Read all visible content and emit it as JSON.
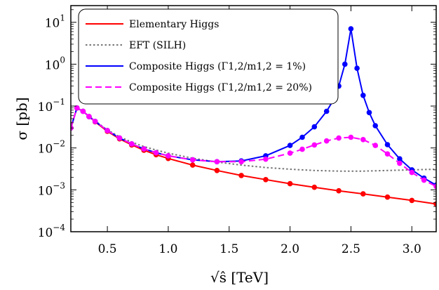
{
  "chart_data": {
    "type": "line",
    "title": "",
    "xlabel": "√ŝ  [TeV]",
    "ylabel": "σ  [pb]",
    "xlim": [
      0.2,
      3.2
    ],
    "ylim": [
      0.0001,
      25
    ],
    "yscale": "log",
    "grid": false,
    "legend_position": "top-left",
    "x_ticks": [
      {
        "value": 0.5,
        "label": "0.5"
      },
      {
        "value": 1.0,
        "label": "1.0"
      },
      {
        "value": 1.5,
        "label": "1.5"
      },
      {
        "value": 2.0,
        "label": "2.0"
      },
      {
        "value": 2.5,
        "label": "2.5"
      },
      {
        "value": 3.0,
        "label": "3.0"
      }
    ],
    "y_ticks": [
      {
        "value": 0.0001,
        "base": "10",
        "exp": "−4"
      },
      {
        "value": 0.001,
        "base": "10",
        "exp": "−3"
      },
      {
        "value": 0.01,
        "base": "10",
        "exp": "−2"
      },
      {
        "value": 0.1,
        "base": "10",
        "exp": "−1"
      },
      {
        "value": 1,
        "base": "10",
        "exp": "0"
      },
      {
        "value": 10,
        "base": "10",
        "exp": "1"
      }
    ],
    "series": [
      {
        "name": "Elementary Higgs",
        "color": "#ff0000",
        "style": "solid",
        "markers": true,
        "x": [
          0.2,
          0.25,
          0.3,
          0.35,
          0.4,
          0.5,
          0.6,
          0.7,
          0.8,
          0.9,
          1.0,
          1.2,
          1.4,
          1.6,
          1.8,
          2.0,
          2.2,
          2.4,
          2.6,
          2.8,
          3.0,
          3.2
        ],
        "y": [
          0.03,
          0.09,
          0.075,
          0.056,
          0.042,
          0.025,
          0.0165,
          0.0118,
          0.0088,
          0.0069,
          0.0056,
          0.0039,
          0.0029,
          0.0022,
          0.00175,
          0.0014,
          0.00115,
          0.00095,
          0.0008,
          0.00067,
          0.00056,
          0.00046
        ]
      },
      {
        "name": "EFT (SILH)",
        "color": "#777777",
        "style": "dotted",
        "markers": false,
        "x": [
          0.2,
          0.25,
          0.3,
          0.35,
          0.4,
          0.5,
          0.6,
          0.7,
          0.8,
          0.9,
          1.0,
          1.2,
          1.4,
          1.6,
          1.8,
          2.0,
          2.2,
          2.4,
          2.6,
          2.8,
          3.0,
          3.2
        ],
        "y": [
          0.03,
          0.09,
          0.075,
          0.057,
          0.044,
          0.027,
          0.0185,
          0.0138,
          0.0108,
          0.0089,
          0.0075,
          0.0057,
          0.0046,
          0.0039,
          0.0034,
          0.0031,
          0.0029,
          0.0028,
          0.0028,
          0.0029,
          0.003,
          0.0031
        ]
      },
      {
        "name": "Composite Higgs (Γ1,2/m1,2 = 1%)",
        "color": "#0000ff",
        "style": "solid",
        "markers": true,
        "x": [
          0.2,
          0.25,
          0.3,
          0.35,
          0.4,
          0.5,
          0.6,
          0.7,
          0.8,
          0.9,
          1.0,
          1.2,
          1.4,
          1.6,
          1.8,
          2.0,
          2.1,
          2.2,
          2.3,
          2.35,
          2.4,
          2.45,
          2.5,
          2.55,
          2.6,
          2.65,
          2.7,
          2.8,
          2.9,
          3.0,
          3.1,
          3.2
        ],
        "y": [
          0.03,
          0.09,
          0.075,
          0.056,
          0.043,
          0.026,
          0.0172,
          0.0125,
          0.0095,
          0.0077,
          0.0065,
          0.0052,
          0.0047,
          0.0049,
          0.0065,
          0.0115,
          0.018,
          0.032,
          0.075,
          0.13,
          0.3,
          1.0,
          7.0,
          0.8,
          0.18,
          0.07,
          0.034,
          0.012,
          0.0055,
          0.003,
          0.0019,
          0.0013
        ]
      },
      {
        "name": "Composite Higgs (Γ1,2/m1,2 = 20%)",
        "color": "#ff00ff",
        "style": "dashed",
        "markers": true,
        "x": [
          0.2,
          0.25,
          0.3,
          0.35,
          0.4,
          0.5,
          0.6,
          0.7,
          0.8,
          0.9,
          1.0,
          1.2,
          1.4,
          1.6,
          1.8,
          2.0,
          2.1,
          2.2,
          2.3,
          2.4,
          2.5,
          2.6,
          2.7,
          2.8,
          2.9,
          3.0,
          3.1,
          3.2
        ],
        "y": [
          0.03,
          0.09,
          0.075,
          0.056,
          0.043,
          0.026,
          0.0172,
          0.0125,
          0.0095,
          0.0077,
          0.0065,
          0.0052,
          0.0047,
          0.0047,
          0.0054,
          0.0075,
          0.0093,
          0.0118,
          0.0147,
          0.0172,
          0.018,
          0.0158,
          0.0115,
          0.0072,
          0.0043,
          0.0026,
          0.0017,
          0.0012
        ]
      }
    ]
  }
}
